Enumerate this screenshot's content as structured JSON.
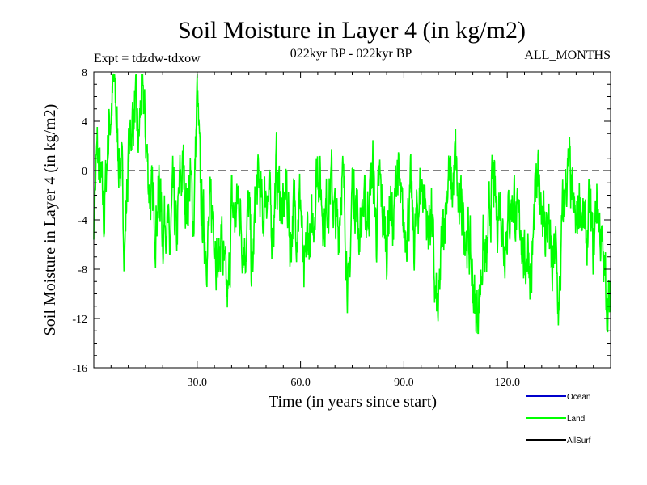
{
  "chart_data": {
    "type": "line",
    "title": "Soil Moisture in Layer 4 (in kg/m2)",
    "subtitle_left": "Expt = tdzdw-tdxow",
    "subtitle_center": "022kyr BP - 022kyr BP",
    "subtitle_right": "ALL_MONTHS",
    "xlabel": "Time (in years since start)",
    "ylabel": "Soil Moisture in Layer 4 (in kg/m2)",
    "xlim": [
      0,
      150
    ],
    "ylim": [
      -16,
      8
    ],
    "xticks": [
      30,
      60,
      90,
      120
    ],
    "xtick_labels": [
      "30.0",
      "60.0",
      "90.0",
      "120.0"
    ],
    "yticks": [
      -16,
      -12,
      -8,
      -4,
      0,
      4,
      8
    ],
    "ytick_labels": [
      "-16",
      "-12",
      "-8",
      "-4",
      "0",
      "4",
      "8"
    ],
    "zero_line": "dashed",
    "legend_position": "bottom-right",
    "legend": [
      {
        "name": "Ocean",
        "color": "#0000cc"
      },
      {
        "name": "Land",
        "color": "#00ff00"
      },
      {
        "name": "AllSurf",
        "color": "#000000"
      }
    ],
    "series": [
      {
        "name": "Land",
        "color": "#00ff00",
        "anchor_x": [
          0,
          1,
          2,
          3,
          4,
          5,
          6,
          7,
          8,
          9,
          10,
          11,
          12,
          13,
          14,
          15,
          16,
          17,
          18,
          19,
          20,
          21,
          22,
          23,
          24,
          25,
          26,
          27,
          28,
          29,
          30,
          31,
          32,
          33,
          34,
          35,
          36,
          37,
          38,
          39,
          40,
          41,
          42,
          43,
          44,
          45,
          46,
          47,
          48,
          49,
          50,
          51,
          52,
          53,
          54,
          55,
          56,
          57,
          58,
          59,
          60,
          61,
          62,
          63,
          64,
          65,
          66,
          67,
          68,
          69,
          70,
          71,
          72,
          73,
          74,
          75,
          76,
          77,
          78,
          79,
          80,
          81,
          82,
          83,
          84,
          85,
          86,
          87,
          88,
          89,
          90,
          91,
          92,
          93,
          94,
          95,
          96,
          97,
          98,
          99,
          100,
          101,
          102,
          103,
          104,
          105,
          106,
          107,
          108,
          109,
          110,
          111,
          112,
          113,
          114,
          115,
          116,
          117,
          118,
          119,
          120,
          121,
          122,
          123,
          124,
          125,
          126,
          127,
          128,
          129,
          130,
          131,
          132,
          133,
          134,
          135,
          136,
          137,
          138,
          139,
          140,
          141,
          142,
          143,
          144,
          145,
          146,
          147,
          148,
          149,
          150
        ],
        "anchor_y": [
          -3.5,
          1.5,
          -1,
          -4,
          2,
          5,
          7,
          2,
          0,
          -6,
          1,
          4,
          5,
          2,
          7.5,
          3,
          -1,
          -3,
          -4,
          -1,
          -5,
          -3,
          -7,
          -2,
          -6,
          -1,
          0,
          -3,
          -1,
          -4,
          6.5,
          -2,
          -5,
          -6,
          -3,
          -4,
          -8,
          -5,
          -9,
          -11,
          -3,
          -4,
          -2,
          -5,
          -6,
          -3,
          -9,
          -2,
          -1,
          -4,
          -1,
          -3,
          -5,
          0,
          -2,
          -4,
          -1,
          -6,
          -3,
          -4,
          -2,
          -10,
          -5,
          -6,
          -3,
          1,
          -2,
          -4,
          -2,
          -1,
          -4,
          -5,
          0,
          -4,
          -11,
          -1,
          -2,
          -5,
          -3,
          -4,
          -2,
          0,
          -5,
          -1,
          -4,
          -6,
          -2,
          -5,
          1,
          -3,
          -5,
          -4,
          -2,
          -6,
          -3,
          -1,
          -2,
          -5,
          -3,
          -10,
          -12,
          -6,
          -3,
          0,
          -2,
          1,
          -4,
          -3,
          -5,
          -6,
          -9,
          -12,
          -10,
          -6,
          -8,
          -3,
          -1,
          -4,
          -2,
          -6,
          -4,
          -3,
          -2,
          -5,
          -4,
          -8,
          -6,
          -9,
          -3,
          -1,
          -2,
          -5,
          -4,
          -9,
          -6,
          -12,
          -4,
          -1,
          0,
          -3,
          -5,
          -2,
          -4,
          -6,
          -3,
          -7,
          -2,
          -5,
          -8,
          -10,
          -12
        ]
      }
    ]
  }
}
